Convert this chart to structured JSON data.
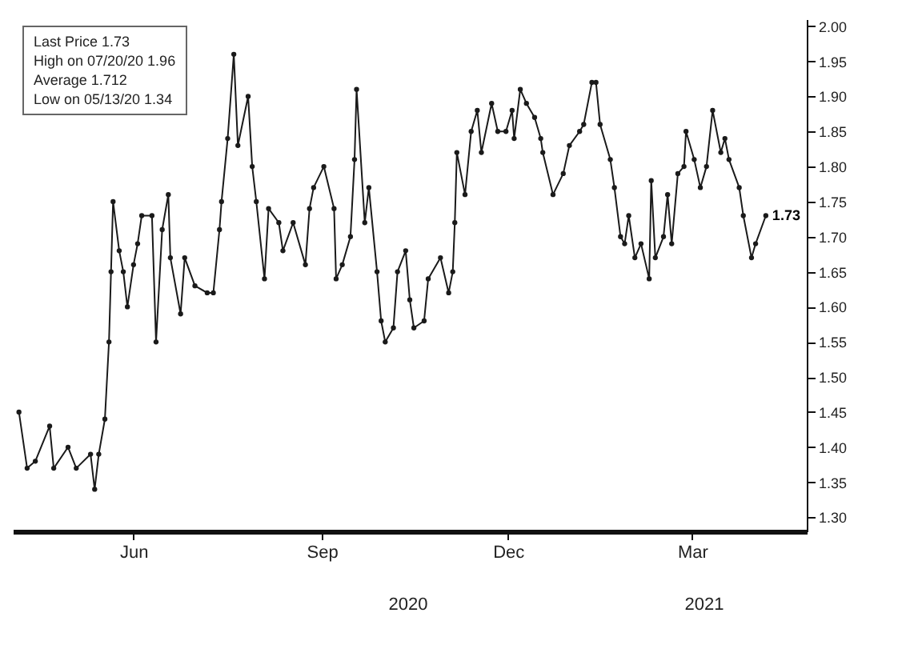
{
  "chart_data": {
    "type": "line",
    "marker": "circle",
    "line_style": "solid",
    "grid": false,
    "annotations": [
      "Last Price 1.73",
      "High on 07/20/20 1.96",
      "Average 1.712",
      "Low on 05/13/20 1.34",
      "2020",
      "2021",
      {
        "text": "1.73",
        "x": "2021-04-06",
        "y": 1.73
      }
    ],
    "xlim": [
      "2020-04-03",
      "2021-04-26"
    ],
    "xticks": [
      {
        "value": "2020-06-01",
        "label": "Jun"
      },
      {
        "value": "2020-09-01",
        "label": "Sep"
      },
      {
        "value": "2020-12-01",
        "label": "Dec"
      },
      {
        "value": "2021-03-01",
        "label": "Mar"
      }
    ],
    "ylim": [
      1.28,
      2.01
    ],
    "yticks": [
      {
        "value": 1.3,
        "label": "1.30"
      },
      {
        "value": 1.35,
        "label": "1.35"
      },
      {
        "value": 1.4,
        "label": "1.40"
      },
      {
        "value": 1.45,
        "label": "1.45"
      },
      {
        "value": 1.5,
        "label": "1.50"
      },
      {
        "value": 1.55,
        "label": "1.55"
      },
      {
        "value": 1.6,
        "label": "1.60"
      },
      {
        "value": 1.65,
        "label": "1.65"
      },
      {
        "value": 1.7,
        "label": "1.70"
      },
      {
        "value": 1.75,
        "label": "1.75"
      },
      {
        "value": 1.8,
        "label": "1.80"
      },
      {
        "value": 1.85,
        "label": "1.85"
      },
      {
        "value": 1.9,
        "label": "1.90"
      },
      {
        "value": 1.95,
        "label": "1.95"
      },
      {
        "value": 2,
        "label": "2.00"
      }
    ],
    "series": [
      {
        "color": "#1a1a1a",
        "x": [
          "2020-04-06",
          "2020-04-10",
          "2020-04-14",
          "2020-04-21",
          "2020-04-23",
          "2020-04-30",
          "2020-05-04",
          "2020-05-11",
          "2020-05-13",
          "2020-05-15",
          "2020-05-18",
          "2020-05-20",
          "2020-05-21",
          "2020-05-22",
          "2020-05-25",
          "2020-05-27",
          "2020-05-29",
          "2020-06-01",
          "2020-06-03",
          "2020-06-05",
          "2020-06-10",
          "2020-06-12",
          "2020-06-15",
          "2020-06-18",
          "2020-06-19",
          "2020-06-24",
          "2020-06-26",
          "2020-07-01",
          "2020-07-07",
          "2020-07-10",
          "2020-07-13",
          "2020-07-14",
          "2020-07-17",
          "2020-07-20",
          "2020-07-22",
          "2020-07-27",
          "2020-07-29",
          "2020-07-31",
          "2020-08-04",
          "2020-08-06",
          "2020-08-11",
          "2020-08-13",
          "2020-08-18",
          "2020-08-24",
          "2020-08-26",
          "2020-08-28",
          "2020-09-02",
          "2020-09-07",
          "2020-09-08",
          "2020-09-11",
          "2020-09-15",
          "2020-09-17",
          "2020-09-18",
          "2020-09-22",
          "2020-09-24",
          "2020-09-28",
          "2020-09-30",
          "2020-10-02",
          "2020-10-06",
          "2020-10-08",
          "2020-10-12",
          "2020-10-14",
          "2020-10-16",
          "2020-10-21",
          "2020-10-23",
          "2020-10-29",
          "2020-11-02",
          "2020-11-04",
          "2020-11-05",
          "2020-11-06",
          "2020-11-10",
          "2020-11-13",
          "2020-11-16",
          "2020-11-18",
          "2020-11-23",
          "2020-11-26",
          "2020-11-30",
          "2020-12-03",
          "2020-12-04",
          "2020-12-07",
          "2020-12-10",
          "2020-12-14",
          "2020-12-17",
          "2020-12-18",
          "2020-12-23",
          "2020-12-28",
          "2020-12-31",
          "2021-01-05",
          "2021-01-07",
          "2021-01-11",
          "2021-01-13",
          "2021-01-15",
          "2021-01-20",
          "2021-01-22",
          "2021-01-25",
          "2021-01-27",
          "2021-01-29",
          "2021-02-01",
          "2021-02-04",
          "2021-02-08",
          "2021-02-09",
          "2021-02-11",
          "2021-02-15",
          "2021-02-17",
          "2021-02-19",
          "2021-02-22",
          "2021-02-25",
          "2021-02-26",
          "2021-03-02",
          "2021-03-05",
          "2021-03-08",
          "2021-03-11",
          "2021-03-15",
          "2021-03-17",
          "2021-03-19",
          "2021-03-24",
          "2021-03-26",
          "2021-03-30",
          "2021-04-01",
          "2021-04-06"
        ],
        "values": [
          1.45,
          1.37,
          1.38,
          1.43,
          1.37,
          1.4,
          1.37,
          1.39,
          1.34,
          1.39,
          1.44,
          1.55,
          1.65,
          1.75,
          1.68,
          1.65,
          1.6,
          1.66,
          1.69,
          1.73,
          1.73,
          1.55,
          1.71,
          1.76,
          1.67,
          1.59,
          1.67,
          1.63,
          1.62,
          1.62,
          1.71,
          1.75,
          1.84,
          1.96,
          1.83,
          1.9,
          1.8,
          1.75,
          1.64,
          1.74,
          1.72,
          1.68,
          1.72,
          1.66,
          1.74,
          1.77,
          1.8,
          1.74,
          1.64,
          1.66,
          1.7,
          1.81,
          1.91,
          1.72,
          1.77,
          1.65,
          1.58,
          1.55,
          1.57,
          1.65,
          1.68,
          1.61,
          1.57,
          1.58,
          1.64,
          1.67,
          1.62,
          1.65,
          1.72,
          1.82,
          1.76,
          1.85,
          1.88,
          1.82,
          1.89,
          1.85,
          1.85,
          1.88,
          1.84,
          1.91,
          1.89,
          1.87,
          1.84,
          1.82,
          1.76,
          1.79,
          1.83,
          1.85,
          1.86,
          1.92,
          1.92,
          1.86,
          1.81,
          1.77,
          1.7,
          1.69,
          1.73,
          1.67,
          1.69,
          1.64,
          1.78,
          1.67,
          1.7,
          1.76,
          1.69,
          1.79,
          1.8,
          1.85,
          1.81,
          1.77,
          1.8,
          1.88,
          1.82,
          1.84,
          1.81,
          1.77,
          1.73,
          1.67,
          1.69,
          1.73
        ]
      }
    ]
  }
}
